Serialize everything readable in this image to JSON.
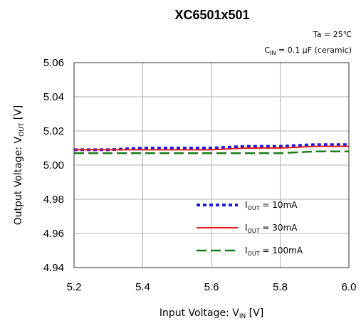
{
  "chart_data": {
    "type": "line",
    "title": "XC6501x501",
    "conditions": {
      "ta": "Ta = 25℃",
      "cin_prefix": "C",
      "cin_sub": "IN",
      "cin_suffix": " = 0.1 μF (ceramic)"
    },
    "xlabel": {
      "prefix": "Input Voltage: V",
      "sub": "IN",
      "suffix": " [V]"
    },
    "ylabel": {
      "prefix": "Output Voltage: V",
      "sub": "OUT",
      "suffix": " [V]"
    },
    "xlim": [
      5.2,
      6.0
    ],
    "ylim": [
      4.94,
      5.06
    ],
    "xticks": [
      "5.2",
      "5.4",
      "5.6",
      "5.8",
      "6.0"
    ],
    "yticks": [
      "4.94",
      "4.96",
      "4.98",
      "5.00",
      "5.02",
      "5.04",
      "5.06"
    ],
    "grid": true,
    "legend_position": "lower-right",
    "series": [
      {
        "legend_prefix": "I",
        "legend_sub": "OUT",
        "legend_suffix": " = 10mA",
        "color": "#1c1cdc",
        "style": "dotted",
        "x": [
          5.2,
          5.3,
          5.4,
          5.5,
          5.6,
          5.7,
          5.8,
          5.9,
          6.0
        ],
        "y": [
          5.009,
          5.009,
          5.01,
          5.01,
          5.01,
          5.011,
          5.011,
          5.012,
          5.012
        ]
      },
      {
        "legend_prefix": "I",
        "legend_sub": "OUT",
        "legend_suffix": " = 30mA",
        "color": "#e0191c",
        "style": "solid",
        "x": [
          5.2,
          5.3,
          5.4,
          5.5,
          5.6,
          5.7,
          5.8,
          5.9,
          6.0
        ],
        "y": [
          5.009,
          5.009,
          5.009,
          5.009,
          5.009,
          5.01,
          5.01,
          5.011,
          5.011
        ]
      },
      {
        "legend_prefix": "I",
        "legend_sub": "OUT",
        "legend_suffix": " = 100mA",
        "color": "#1a7a1a",
        "style": "dashed",
        "x": [
          5.2,
          5.3,
          5.4,
          5.5,
          5.6,
          5.7,
          5.8,
          5.9,
          6.0
        ],
        "y": [
          5.007,
          5.007,
          5.007,
          5.007,
          5.007,
          5.007,
          5.007,
          5.008,
          5.008
        ]
      }
    ]
  }
}
